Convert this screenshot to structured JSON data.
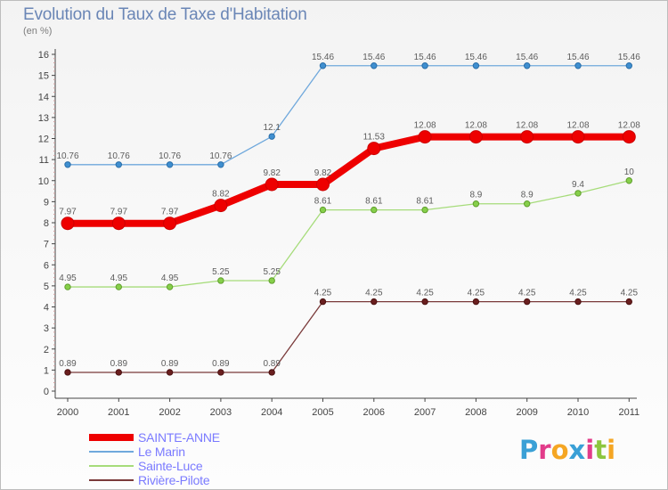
{
  "title": "Evolution du Taux de Taxe d'Habitation",
  "unit": "(en %)",
  "logo": {
    "text": "Proxiti",
    "colors": [
      "#3aa0d6",
      "#e23c8a",
      "#f5a623",
      "#3aa0d6",
      "#e23c8a",
      "#8dc63f",
      "#f5a623"
    ]
  },
  "chart_data": {
    "type": "line",
    "title": "Evolution du Taux de Taxe d'Habitation",
    "ylabel": "(en %)",
    "xlabel": "",
    "x": [
      "2000",
      "2001",
      "2002",
      "2003",
      "2004",
      "2005",
      "2006",
      "2007",
      "2008",
      "2009",
      "2010",
      "2011"
    ],
    "ylim": [
      0,
      16
    ],
    "yticks": [
      0,
      1,
      2,
      3,
      4,
      5,
      6,
      7,
      8,
      9,
      10,
      11,
      12,
      13,
      14,
      15,
      16
    ],
    "grid": false,
    "legend_position": "bottom-left",
    "series": [
      {
        "name": "SAINTE-ANNE",
        "color": "#ee0000",
        "values": [
          7.97,
          7.97,
          7.97,
          8.82,
          9.82,
          9.82,
          11.53,
          12.08,
          12.08,
          12.08,
          12.08,
          12.08
        ],
        "labels": [
          "7.97",
          "7.97",
          "7.97",
          "8.82",
          "9.82",
          "9.82",
          "11.53",
          "12.08",
          "12.08",
          "12.08",
          "12.08",
          "12.08"
        ]
      },
      {
        "name": "Le Marin",
        "color": "#6fa8dc",
        "values": [
          10.76,
          10.76,
          10.76,
          10.76,
          12.1,
          15.46,
          15.46,
          15.46,
          15.46,
          15.46,
          15.46,
          15.46
        ],
        "labels": [
          "10.76",
          "10.76",
          "10.76",
          "10.76",
          "12.1",
          "15.46",
          "15.46",
          "15.46",
          "15.46",
          "15.46",
          "15.46",
          "15.46"
        ]
      },
      {
        "name": "Sainte-Luce",
        "color": "#a6dc7a",
        "values": [
          4.95,
          4.95,
          4.95,
          5.25,
          5.25,
          8.61,
          8.61,
          8.61,
          8.9,
          8.9,
          9.4,
          10
        ],
        "labels": [
          "4.95",
          "4.95",
          "4.95",
          "5.25",
          "5.25",
          "8.61",
          "8.61",
          "8.61",
          "8.9",
          "8.9",
          "9.4",
          "10"
        ]
      },
      {
        "name": "Rivière-Pilote",
        "color": "#7a3a3a",
        "values": [
          0.89,
          0.89,
          0.89,
          0.89,
          0.89,
          4.25,
          4.25,
          4.25,
          4.25,
          4.25,
          4.25,
          4.25
        ],
        "labels": [
          "0.89",
          "0.89",
          "0.89",
          "0.89",
          "0.89",
          "4.25",
          "4.25",
          "4.25",
          "4.25",
          "4.25",
          "4.25",
          "4.25"
        ]
      }
    ]
  }
}
